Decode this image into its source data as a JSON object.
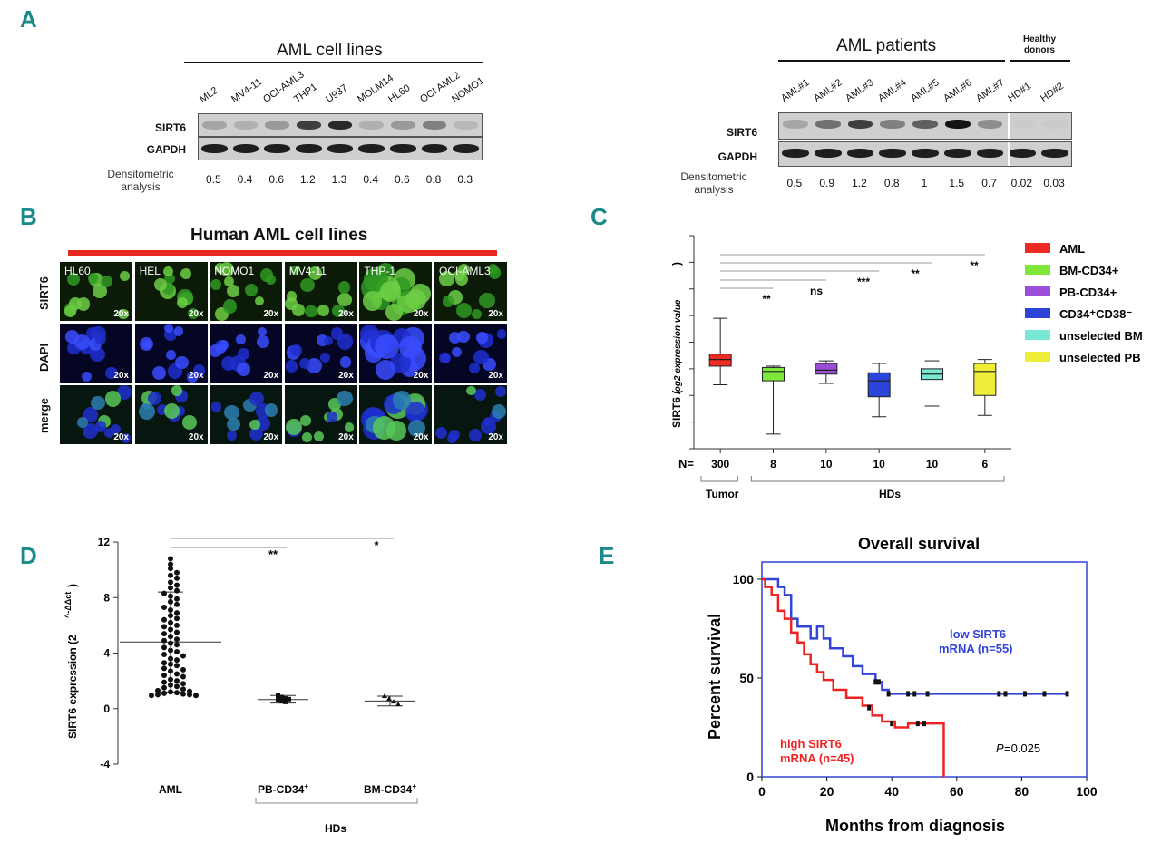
{
  "panels": {
    "A": "A",
    "B": "B",
    "C": "C",
    "D": "D",
    "E": "E"
  },
  "panelA": {
    "left": {
      "title": "AML cell lines",
      "lanes": [
        "ML2",
        "MV4-11",
        "OCI-AML3",
        "THP1",
        "U937",
        "MOLM14",
        "HL60",
        "OCI AML2",
        "NOMO1"
      ],
      "rows": [
        "SIRT6",
        "GAPDH"
      ],
      "densito_label": "Densitometric analysis",
      "densito_values": [
        "0.5",
        "0.4",
        "0.6",
        "1.2",
        "1.3",
        "0.4",
        "0.6",
        "0.8",
        "0.3"
      ],
      "band_intensity_sirt6": [
        0.5,
        0.4,
        0.6,
        1.2,
        1.3,
        0.4,
        0.6,
        0.8,
        0.3
      ]
    },
    "right": {
      "title": "AML patients",
      "healthy_title": "Healthy donors",
      "lanes": [
        "AML#1",
        "AML#2",
        "AML#3",
        "AML#4",
        "AML#5",
        "AML#6",
        "AML#7",
        "HD#1",
        "HD#2"
      ],
      "rows": [
        "SIRT6",
        "GAPDH"
      ],
      "densito_label": "Densitometric analysis",
      "densito_values": [
        "0.5",
        "0.9",
        "1.2",
        "0.8",
        "1",
        "1.5",
        "0.7",
        "0.02",
        "0.03"
      ],
      "band_intensity_sirt6": [
        0.5,
        0.9,
        1.2,
        0.8,
        1,
        1.5,
        0.7,
        0.02,
        0.03
      ]
    }
  },
  "panelB": {
    "title": "Human AML cell lines",
    "columns": [
      "HL60",
      "HEL",
      "NOMO1",
      "MV4-11",
      "THP-1",
      "OCI-AML3"
    ],
    "rows": [
      "SIRT6",
      "DAPI",
      "merge"
    ],
    "magnification": "20x",
    "accent_color": "#e8281e"
  },
  "chart_data": [
    {
      "type": "box",
      "panel": "C",
      "ylabel_main": "SIRT6 (",
      "ylabel_sub": "log2 expression value",
      "ylabel_end": ")",
      "groups": [
        {
          "name": "AML",
          "color": "#ee2b24",
          "n": "300",
          "min": 2.4,
          "q1": 3.1,
          "median": 3.35,
          "q3": 3.55,
          "max": 4.9
        },
        {
          "name": "BM-CD34+",
          "color": "#7de83a",
          "n": "8",
          "min": 0.55,
          "q1": 2.55,
          "median": 2.9,
          "q3": 3.05,
          "max": 3.1
        },
        {
          "name": "PB-CD34+",
          "color": "#9b4fd8",
          "n": "10",
          "min": 2.45,
          "q1": 2.8,
          "median": 2.95,
          "q3": 3.2,
          "max": 3.3
        },
        {
          "name": "CD34⁺CD38⁻",
          "color": "#2a45d8",
          "n": "10",
          "min": 1.2,
          "q1": 1.95,
          "median": 2.55,
          "q3": 2.85,
          "max": 3.2
        },
        {
          "name": "unselected BM",
          "color": "#78e8d4",
          "n": "10",
          "min": 1.6,
          "q1": 2.6,
          "median": 2.8,
          "q3": 3.0,
          "max": 3.3
        },
        {
          "name": "unselected PB",
          "color": "#eeee3a",
          "n": "6",
          "min": 1.25,
          "q1": 2.0,
          "median": 2.9,
          "q3": 3.2,
          "max": 3.35
        }
      ],
      "n_label": "N=",
      "tumor_label": "Tumor",
      "hd_label": "HDs",
      "significance": [
        "**",
        "ns",
        "***",
        "**",
        "**"
      ],
      "ylim": [
        0,
        8
      ]
    },
    {
      "type": "scatter",
      "panel": "D",
      "ylabel": "SIRT6 expression (2^-ΔΔct)",
      "ylabel_main": "SIRT6 expression (2",
      "ylabel_sup": "^-ΔΔct",
      "ylabel_end": ")",
      "ylim": [
        -4,
        12
      ],
      "yticks": [
        "-4",
        "0",
        "4",
        "8",
        "12"
      ],
      "categories": [
        "AML",
        "PB-CD34+",
        "BM-CD34+"
      ],
      "cat_main": [
        "AML",
        "PB-CD34",
        "BM-CD34"
      ],
      "cat_sup": [
        "",
        "+",
        "+"
      ],
      "means": [
        4.8,
        0.65,
        0.55
      ],
      "sd_upper": [
        8.4,
        0.95,
        0.9
      ],
      "sd_lower": [
        1.2,
        0.4,
        0.2
      ],
      "aml_values": [
        10.8,
        10.4,
        10.1,
        9.8,
        9.6,
        9.4,
        9.1,
        8.9,
        8.7,
        8.5,
        8.3,
        8.1,
        7.9,
        7.7,
        7.5,
        7.3,
        7.1,
        6.9,
        6.7,
        6.5,
        6.4,
        6.2,
        6.0,
        5.9,
        5.7,
        5.5,
        5.4,
        5.2,
        5.0,
        4.9,
        4.7,
        4.6,
        4.4,
        4.2,
        4.1,
        3.9,
        3.8,
        3.6,
        3.5,
        3.3,
        3.2,
        3.1,
        2.9,
        2.8,
        2.7,
        2.5,
        2.4,
        2.3,
        2.1,
        2.0,
        1.9,
        1.8,
        1.7,
        1.6,
        1.5,
        1.4,
        1.3,
        1.25,
        1.2,
        1.15,
        1.1,
        1.05,
        1.0,
        1.0,
        0.95,
        0.95
      ],
      "pb_values": [
        0.9,
        0.8,
        0.7,
        0.65,
        0.6,
        0.5,
        0.45
      ],
      "bm_values": [
        0.9,
        0.7,
        0.5,
        0.3
      ],
      "hd_label": "HDs",
      "significance": [
        "**",
        "*"
      ]
    },
    {
      "type": "line",
      "panel": "E",
      "title": "Overall survival",
      "xlabel": "Months from diagnosis",
      "ylabel": "Percent survival",
      "xlim": [
        0,
        100
      ],
      "ylim": [
        0,
        100
      ],
      "xticks": [
        "0",
        "20",
        "40",
        "60",
        "80",
        "100"
      ],
      "yticks": [
        "0",
        "50",
        "100"
      ],
      "series": [
        {
          "name": "low SIRT6 mRNA (n=55)",
          "line1": "low SIRT6",
          "line2": "mRNA (n=55)",
          "color": "#3344d8",
          "x": [
            0,
            5,
            5,
            7,
            7,
            9,
            9,
            11,
            11,
            15,
            15,
            17,
            17,
            19,
            19,
            21,
            21,
            25,
            25,
            28,
            28,
            31,
            31,
            35,
            35,
            37,
            37,
            39,
            39,
            94
          ],
          "y": [
            100,
            100,
            96,
            96,
            92,
            92,
            80,
            80,
            76,
            76,
            70,
            70,
            76,
            76,
            70,
            70,
            65,
            65,
            61,
            61,
            56,
            56,
            52,
            52,
            48,
            48,
            44,
            44,
            42,
            42
          ]
        },
        {
          "name": "high SIRT6 mRNA (n=45)",
          "line1": "high SIRT6",
          "line2": "mRNA (n=45)",
          "color": "#ee2222",
          "x": [
            0,
            1,
            1,
            3,
            3,
            5,
            5,
            7,
            7,
            9,
            9,
            11,
            11,
            13,
            13,
            15,
            15,
            17,
            17,
            19,
            19,
            22,
            22,
            26,
            26,
            31,
            31,
            34,
            34,
            37,
            37,
            41,
            41,
            45,
            45,
            56,
            56
          ],
          "y": [
            100,
            100,
            96,
            96,
            92,
            92,
            84,
            84,
            80,
            80,
            73,
            73,
            68,
            68,
            62,
            62,
            57,
            57,
            53,
            53,
            49,
            49,
            44,
            44,
            40,
            40,
            36,
            36,
            31,
            31,
            28,
            28,
            25,
            25,
            27,
            27,
            0
          ]
        }
      ],
      "censor_low": [
        [
          39,
          42
        ],
        [
          47,
          42
        ],
        [
          51,
          42
        ],
        [
          73,
          42
        ],
        [
          75,
          42
        ],
        [
          81,
          42
        ],
        [
          87,
          42
        ],
        [
          94,
          42
        ],
        [
          35,
          48
        ],
        [
          36,
          48
        ],
        [
          45,
          42
        ]
      ],
      "censor_high": [
        [
          33,
          35
        ],
        [
          40,
          27
        ],
        [
          48,
          27
        ],
        [
          50,
          27
        ]
      ],
      "p_label": "P",
      "p_value": "=0.025"
    }
  ]
}
